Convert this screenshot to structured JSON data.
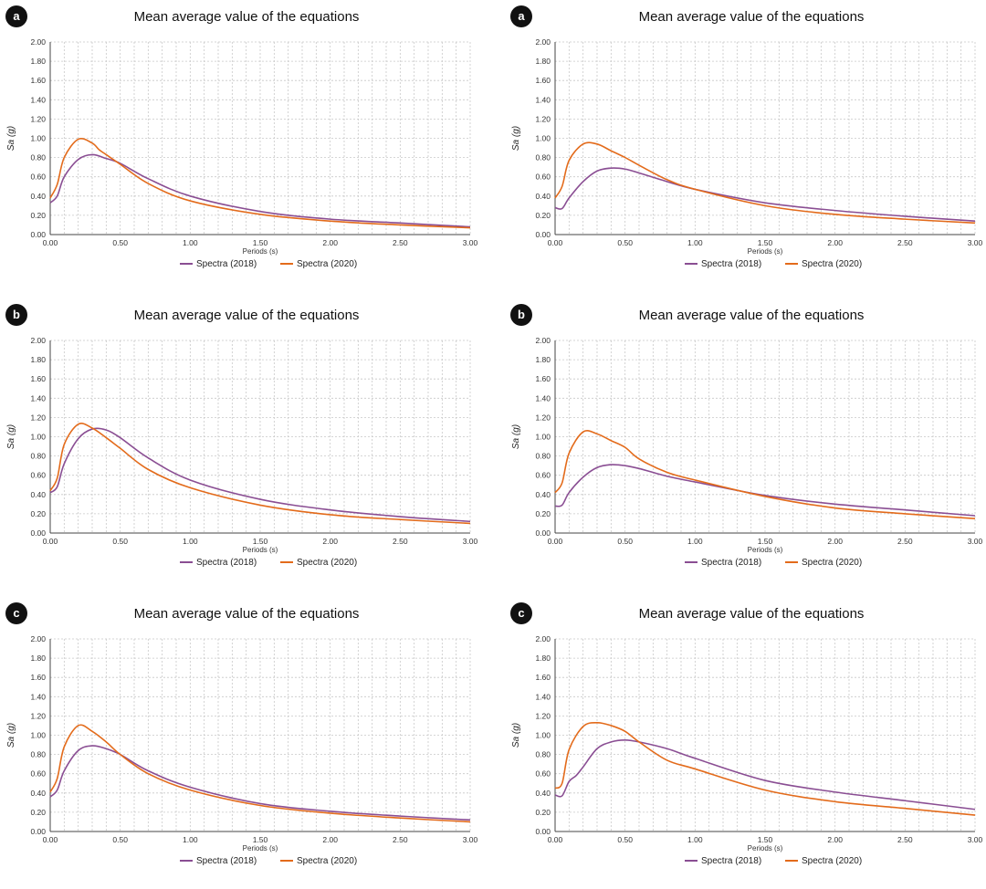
{
  "colors": {
    "spectra_2018": "#8a4e93",
    "spectra_2020": "#e36b1b",
    "grid": "#c8c8c8",
    "axis": "#444444"
  },
  "chart_data": [
    {
      "id": "a-left",
      "panel_label": "a",
      "type": "line",
      "title": "Mean average value of the equations",
      "xlabel": "Periods (s)",
      "ylabel": "Sa (g)",
      "xlim": [
        0,
        3
      ],
      "ylim": [
        0,
        2
      ],
      "xticks": [
        "0.00",
        "0.50",
        "1.00",
        "1.50",
        "2.00",
        "2.50",
        "3.00"
      ],
      "yticks": [
        "0.00",
        "0.20",
        "0.40",
        "0.60",
        "0.80",
        "1.00",
        "1.20",
        "1.40",
        "1.60",
        "1.80",
        "2.00"
      ],
      "grid": true,
      "legend_position": "bottom-center",
      "series": [
        {
          "name": "Spectra (2018)",
          "color": "#8a4e93",
          "x": [
            0,
            0.05,
            0.1,
            0.2,
            0.3,
            0.4,
            0.5,
            0.7,
            1.0,
            1.5,
            2.0,
            2.5,
            3.0
          ],
          "y": [
            0.33,
            0.4,
            0.6,
            0.78,
            0.83,
            0.79,
            0.74,
            0.58,
            0.4,
            0.24,
            0.16,
            0.12,
            0.08
          ]
        },
        {
          "name": "Spectra (2020)",
          "color": "#e36b1b",
          "x": [
            0,
            0.05,
            0.1,
            0.2,
            0.3,
            0.35,
            0.4,
            0.5,
            0.7,
            1.0,
            1.5,
            2.0,
            2.5,
            3.0
          ],
          "y": [
            0.38,
            0.52,
            0.8,
            0.99,
            0.95,
            0.88,
            0.83,
            0.73,
            0.53,
            0.35,
            0.21,
            0.14,
            0.1,
            0.07
          ]
        }
      ]
    },
    {
      "id": "a-right",
      "panel_label": "a",
      "type": "line",
      "title": "Mean average value of the equations",
      "xlabel": "Periods (s)",
      "ylabel": "Sa (g)",
      "xlim": [
        0,
        3
      ],
      "ylim": [
        0,
        2
      ],
      "xticks": [
        "0.00",
        "0.50",
        "1.00",
        "1.50",
        "2.00",
        "2.50",
        "3.00"
      ],
      "yticks": [
        "0.00",
        "0.20",
        "0.40",
        "0.60",
        "0.80",
        "1.00",
        "1.20",
        "1.40",
        "1.60",
        "1.80",
        "2.00"
      ],
      "grid": true,
      "legend_position": "bottom-center",
      "series": [
        {
          "name": "Spectra (2018)",
          "color": "#8a4e93",
          "x": [
            0,
            0.05,
            0.1,
            0.2,
            0.3,
            0.4,
            0.5,
            0.6,
            0.8,
            1.0,
            1.5,
            2.0,
            2.5,
            3.0
          ],
          "y": [
            0.28,
            0.27,
            0.38,
            0.55,
            0.66,
            0.69,
            0.68,
            0.64,
            0.55,
            0.47,
            0.33,
            0.25,
            0.19,
            0.14
          ]
        },
        {
          "name": "Spectra (2020)",
          "color": "#e36b1b",
          "x": [
            0,
            0.05,
            0.1,
            0.2,
            0.3,
            0.4,
            0.5,
            0.6,
            0.8,
            1.0,
            1.5,
            2.0,
            2.5,
            3.0
          ],
          "y": [
            0.38,
            0.5,
            0.77,
            0.94,
            0.94,
            0.87,
            0.8,
            0.72,
            0.57,
            0.47,
            0.3,
            0.21,
            0.16,
            0.12
          ]
        }
      ]
    },
    {
      "id": "b-left",
      "panel_label": "b",
      "type": "line",
      "title": "Mean average value of the equations",
      "xlabel": "Periods (s)",
      "ylabel": "Sa (g)",
      "xlim": [
        0,
        3
      ],
      "ylim": [
        0,
        2
      ],
      "xticks": [
        "0.00",
        "0.50",
        "1.00",
        "1.50",
        "2.00",
        "2.50",
        "3.00"
      ],
      "yticks": [
        "0.00",
        "0.20",
        "0.40",
        "0.60",
        "0.80",
        "1.00",
        "1.20",
        "1.40",
        "1.60",
        "1.80",
        "2.00"
      ],
      "grid": true,
      "legend_position": "bottom-center",
      "series": [
        {
          "name": "Spectra (2018)",
          "color": "#8a4e93",
          "x": [
            0,
            0.05,
            0.1,
            0.2,
            0.3,
            0.4,
            0.5,
            0.7,
            1.0,
            1.5,
            2.0,
            2.5,
            3.0
          ],
          "y": [
            0.42,
            0.48,
            0.72,
            0.98,
            1.08,
            1.07,
            0.99,
            0.78,
            0.55,
            0.35,
            0.24,
            0.17,
            0.12
          ]
        },
        {
          "name": "Spectra (2020)",
          "color": "#e36b1b",
          "x": [
            0,
            0.05,
            0.1,
            0.2,
            0.3,
            0.4,
            0.5,
            0.7,
            1.0,
            1.5,
            2.0,
            2.5,
            3.0
          ],
          "y": [
            0.44,
            0.57,
            0.92,
            1.13,
            1.09,
            0.99,
            0.88,
            0.66,
            0.47,
            0.29,
            0.19,
            0.14,
            0.1
          ]
        }
      ]
    },
    {
      "id": "b-right",
      "panel_label": "b",
      "type": "line",
      "title": "Mean average value of the equations",
      "xlabel": "Periods (s)",
      "ylabel": "Sa (g)",
      "xlim": [
        0,
        3
      ],
      "ylim": [
        0,
        2
      ],
      "xticks": [
        "0.00",
        "0.50",
        "1.00",
        "1.50",
        "2.00",
        "2.50",
        "3.00"
      ],
      "yticks": [
        "0.00",
        "0.20",
        "0.40",
        "0.60",
        "0.80",
        "1.00",
        "1.20",
        "1.40",
        "1.60",
        "1.80",
        "2.00"
      ],
      "grid": true,
      "legend_position": "bottom-center",
      "series": [
        {
          "name": "Spectra (2018)",
          "color": "#8a4e93",
          "x": [
            0,
            0.05,
            0.1,
            0.2,
            0.3,
            0.4,
            0.5,
            0.6,
            0.8,
            1.0,
            1.5,
            2.0,
            2.5,
            3.0
          ],
          "y": [
            0.28,
            0.29,
            0.42,
            0.58,
            0.68,
            0.71,
            0.7,
            0.67,
            0.59,
            0.53,
            0.39,
            0.3,
            0.24,
            0.18
          ]
        },
        {
          "name": "Spectra (2020)",
          "color": "#e36b1b",
          "x": [
            0,
            0.05,
            0.1,
            0.2,
            0.3,
            0.4,
            0.5,
            0.6,
            0.8,
            1.0,
            1.5,
            2.0,
            2.5,
            3.0
          ],
          "y": [
            0.42,
            0.52,
            0.83,
            1.05,
            1.03,
            0.96,
            0.89,
            0.77,
            0.63,
            0.55,
            0.38,
            0.26,
            0.2,
            0.15
          ]
        }
      ]
    },
    {
      "id": "c-left",
      "panel_label": "c",
      "type": "line",
      "title": "Mean average value of the equations",
      "xlabel": "Periods (s)",
      "ylabel": "Sa (g)",
      "xlim": [
        0,
        3
      ],
      "ylim": [
        0,
        2
      ],
      "xticks": [
        "0.00",
        "0.50",
        "1.00",
        "1.50",
        "2.00",
        "2.50",
        "3.00"
      ],
      "yticks": [
        "0.00",
        "0.20",
        "0.40",
        "0.60",
        "0.80",
        "1.00",
        "1.20",
        "1.40",
        "1.60",
        "1.80",
        "2.00"
      ],
      "grid": true,
      "legend_position": "bottom-center",
      "series": [
        {
          "name": "Spectra (2018)",
          "color": "#8a4e93",
          "x": [
            0,
            0.05,
            0.1,
            0.2,
            0.3,
            0.4,
            0.5,
            0.7,
            1.0,
            1.5,
            2.0,
            2.5,
            3.0
          ],
          "y": [
            0.36,
            0.43,
            0.63,
            0.84,
            0.89,
            0.86,
            0.8,
            0.63,
            0.46,
            0.29,
            0.21,
            0.16,
            0.12
          ]
        },
        {
          "name": "Spectra (2020)",
          "color": "#e36b1b",
          "x": [
            0,
            0.05,
            0.1,
            0.2,
            0.3,
            0.4,
            0.5,
            0.7,
            1.0,
            1.5,
            2.0,
            2.5,
            3.0
          ],
          "y": [
            0.41,
            0.55,
            0.88,
            1.1,
            1.04,
            0.93,
            0.8,
            0.6,
            0.43,
            0.27,
            0.19,
            0.14,
            0.1
          ]
        }
      ]
    },
    {
      "id": "c-right",
      "panel_label": "c",
      "type": "line",
      "title": "Mean average value of the equations",
      "xlabel": "Periods (s)",
      "ylabel": "Sa (g)",
      "xlim": [
        0,
        3
      ],
      "ylim": [
        0,
        2
      ],
      "xticks": [
        "0.00",
        "0.50",
        "1.00",
        "1.50",
        "2.00",
        "2.50",
        "3.00"
      ],
      "yticks": [
        "0.00",
        "0.20",
        "0.40",
        "0.60",
        "0.80",
        "1.00",
        "1.20",
        "1.40",
        "1.60",
        "1.80",
        "2.00"
      ],
      "grid": true,
      "legend_position": "bottom-center",
      "series": [
        {
          "name": "Spectra (2018)",
          "color": "#8a4e93",
          "x": [
            0,
            0.05,
            0.1,
            0.15,
            0.2,
            0.3,
            0.4,
            0.5,
            0.6,
            0.8,
            1.0,
            1.5,
            2.0,
            2.5,
            3.0
          ],
          "y": [
            0.38,
            0.37,
            0.52,
            0.58,
            0.67,
            0.86,
            0.93,
            0.95,
            0.93,
            0.86,
            0.76,
            0.53,
            0.41,
            0.32,
            0.23
          ]
        },
        {
          "name": "Spectra (2020)",
          "color": "#e36b1b",
          "x": [
            0,
            0.05,
            0.1,
            0.2,
            0.3,
            0.4,
            0.5,
            0.6,
            0.8,
            1.0,
            1.5,
            2.0,
            2.5,
            3.0
          ],
          "y": [
            0.45,
            0.5,
            0.85,
            1.09,
            1.13,
            1.1,
            1.04,
            0.93,
            0.74,
            0.65,
            0.43,
            0.31,
            0.24,
            0.17
          ]
        }
      ]
    }
  ]
}
